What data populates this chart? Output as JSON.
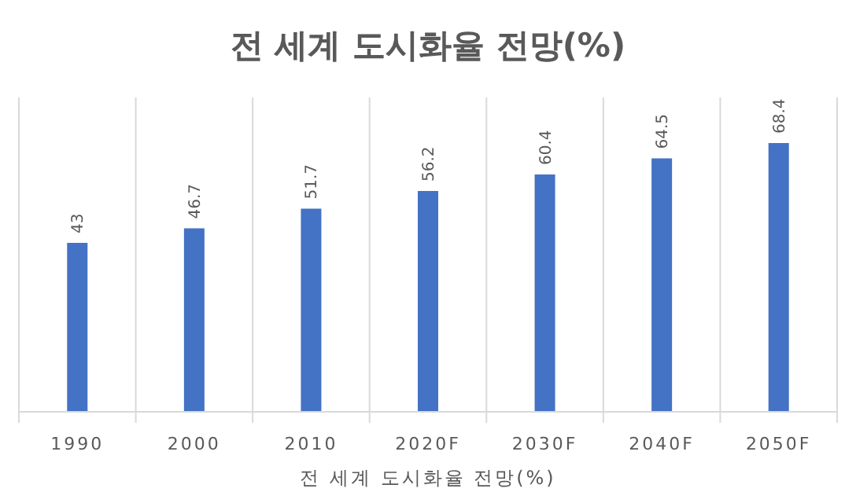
{
  "chart_data": {
    "type": "bar",
    "title": "전 세계 도시화율 전망(%)",
    "xlabel": "전 세계 도시화율 전망(%)",
    "categories": [
      "1990",
      "2000",
      "2010",
      "2020F",
      "2030F",
      "2040F",
      "2050F"
    ],
    "values": [
      43,
      46.7,
      51.7,
      56.2,
      60.4,
      64.5,
      68.4
    ],
    "color": "#4472c4",
    "ylim": [
      0,
      80
    ],
    "data_labels": true,
    "grid": "x",
    "tick_labels": "x"
  }
}
